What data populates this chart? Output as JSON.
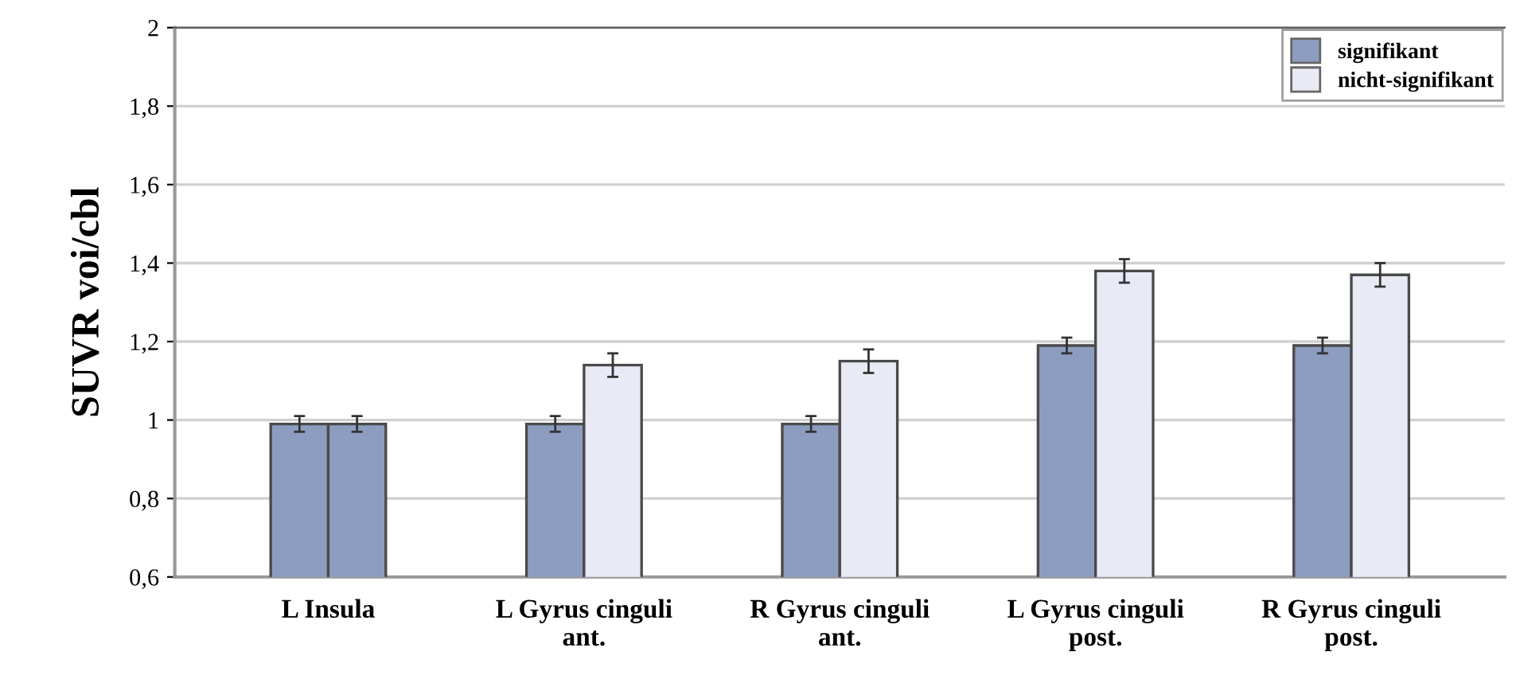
{
  "chart_data": {
    "type": "bar",
    "ylabel": "SUVR voi/cbl",
    "categories": [
      "L Insula",
      "L Gyrus cinguli\nant.",
      "R Gyrus cinguli\nant.",
      "L Gyrus cinguli\npost.",
      "R Gyrus cinguli\npost."
    ],
    "series": [
      {
        "name": "signifikant",
        "color": "#8d9dbf",
        "values": [
          0.99,
          0.99,
          0.99,
          1.19,
          1.19
        ],
        "errors": [
          0.02,
          0.02,
          0.02,
          0.02,
          0.02
        ]
      },
      {
        "name": "nicht-signifikant",
        "color": "#e8ebf5",
        "colors": [
          "#8d9dbf",
          "#e8ebf5",
          "#e8ebf5",
          "#e8ebf5",
          "#e8ebf5"
        ],
        "values": [
          0.99,
          1.14,
          1.15,
          1.38,
          1.37
        ],
        "errors": [
          0.02,
          0.03,
          0.03,
          0.03,
          0.03
        ]
      }
    ],
    "ylim": [
      0.6,
      2
    ],
    "yticks": [
      {
        "value": 0.6,
        "label": "0,6"
      },
      {
        "value": 0.8,
        "label": "0,8"
      },
      1,
      {
        "value": 1.2,
        "label": "1,2"
      },
      {
        "value": 1.4,
        "label": "1,4"
      },
      {
        "value": 1.6,
        "label": "1,6"
      },
      {
        "value": 1.8,
        "label": "1,8"
      },
      2
    ],
    "grid": "y",
    "legend": "top right"
  }
}
